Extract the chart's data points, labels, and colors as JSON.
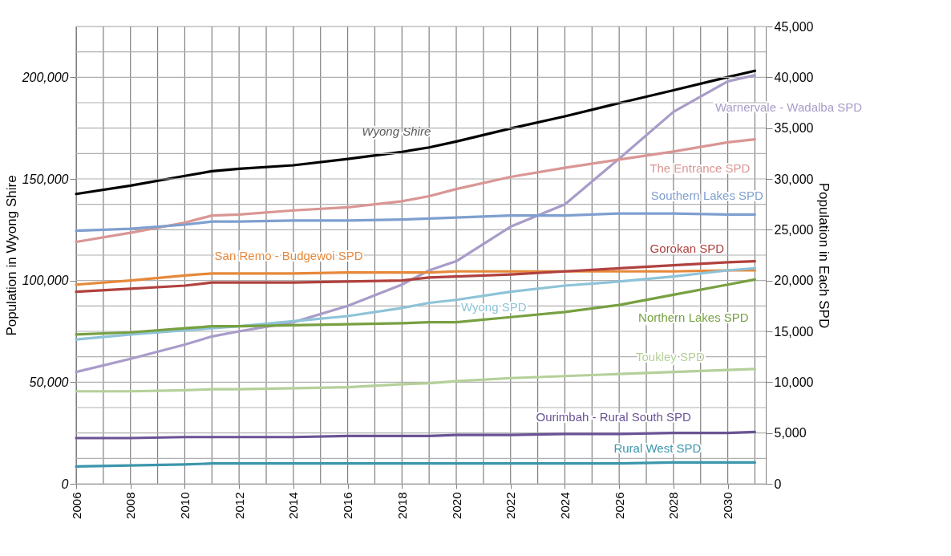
{
  "chart_data": {
    "type": "line",
    "xlabel": null,
    "ylabel": "Population in Wyong Shire",
    "y2label": "Population in Each SPD",
    "x": [
      2006,
      2008,
      2010,
      2011,
      2012,
      2014,
      2016,
      2018,
      2019,
      2020,
      2022,
      2024,
      2026,
      2028,
      2030,
      2031
    ],
    "xlim": [
      2006,
      2031.4
    ],
    "xticks": [
      2006,
      {
        "value": 2007,
        "label": null
      },
      2008,
      {
        "value": 2009,
        "label": null
      },
      2010,
      {
        "value": 2011,
        "label": null
      },
      2012,
      {
        "value": 2013,
        "label": null
      },
      2014,
      {
        "value": 2015,
        "label": null
      },
      2016,
      {
        "value": 2017,
        "label": null
      },
      2018,
      {
        "value": 2019,
        "label": null
      },
      2020,
      {
        "value": 2021,
        "label": null
      },
      2022,
      {
        "value": 2023,
        "label": null
      },
      2024,
      {
        "value": 2025,
        "label": null
      },
      2026,
      {
        "value": 2027,
        "label": null
      },
      2028,
      {
        "value": 2029,
        "label": null
      },
      2030,
      {
        "value": 2031,
        "label": null
      }
    ],
    "ylim": [
      0,
      225000
    ],
    "yticks": [
      0,
      {
        "value": 50000,
        "label": "50,000"
      },
      {
        "value": 100000,
        "label": "100,000"
      },
      {
        "value": 150000,
        "label": "150,000"
      },
      {
        "value": 200000,
        "label": "200,000"
      }
    ],
    "y2lim": [
      0,
      45000
    ],
    "y2ticks": [
      0,
      {
        "value": 2500,
        "label": null
      },
      {
        "value": 5000,
        "label": "5,000"
      },
      {
        "value": 7500,
        "label": null
      },
      {
        "value": 10000,
        "label": "10,000"
      },
      {
        "value": 12500,
        "label": null
      },
      {
        "value": 15000,
        "label": "15,000"
      },
      {
        "value": 17500,
        "label": null
      },
      {
        "value": 20000,
        "label": "20,000"
      },
      {
        "value": 22500,
        "label": null
      },
      {
        "value": 25000,
        "label": "25,000"
      },
      {
        "value": 27500,
        "label": null
      },
      {
        "value": 30000,
        "label": "30,000"
      },
      {
        "value": 32500,
        "label": null
      },
      {
        "value": 35000,
        "label": "35,000"
      },
      {
        "value": 37500,
        "label": null
      },
      {
        "value": 40000,
        "label": "40,000"
      },
      {
        "value": 42500,
        "label": null
      },
      {
        "value": 45000,
        "label": "45,000"
      }
    ],
    "grid": true,
    "series": [
      {
        "name": "Wyong Shire",
        "color": "#000000",
        "values": [
          142600,
          146700,
          151500,
          153800,
          155000,
          156700,
          159800,
          163300,
          165500,
          168400,
          174800,
          180800,
          187300,
          193600,
          200100,
          203200
        ]
      },
      {
        "name": "Warnervale - Wadalba SPD",
        "color": "#a99cc9",
        "axis": "y2",
        "values": [
          11000,
          12300,
          13700,
          14500,
          15000,
          15900,
          17500,
          19600,
          21000,
          21900,
          25300,
          27500,
          32000,
          36600,
          39600,
          40200
        ]
      },
      {
        "name": "The Entrance SPD",
        "color": "#d99694",
        "axis": "y2",
        "values": [
          23800,
          24700,
          25700,
          26400,
          26500,
          26900,
          27200,
          27800,
          28300,
          29000,
          30200,
          31100,
          31900,
          32700,
          33600,
          33900
        ]
      },
      {
        "name": "Southern Lakes SPD",
        "color": "#7f9fcf",
        "axis": "y2",
        "values": [
          24900,
          25100,
          25500,
          25800,
          25800,
          25900,
          25900,
          26000,
          26100,
          26200,
          26400,
          26400,
          26600,
          26600,
          26500,
          26500
        ]
      },
      {
        "name": "San Remo - Budgewoi SPD",
        "color": "#e6883a",
        "axis": "y2",
        "values": [
          19600,
          20000,
          20500,
          20700,
          20700,
          20700,
          20800,
          20800,
          20800,
          20900,
          20900,
          20900,
          20900,
          20900,
          21000,
          21000
        ]
      },
      {
        "name": "Gorokan SPD",
        "color": "#b0413e",
        "axis": "y2",
        "values": [
          18900,
          19200,
          19500,
          19800,
          19800,
          19800,
          19900,
          20000,
          20300,
          20400,
          20600,
          20900,
          21200,
          21500,
          21800,
          21900
        ]
      },
      {
        "name": "Wyong SPD",
        "color": "#8ec3d8",
        "axis": "y2",
        "values": [
          14200,
          14700,
          15100,
          15300,
          15500,
          16000,
          16500,
          17300,
          17800,
          18100,
          18900,
          19500,
          19900,
          20400,
          21000,
          21200
        ]
      },
      {
        "name": "Northern Lakes SPD",
        "color": "#77a041",
        "axis": "y2",
        "values": [
          14700,
          14900,
          15300,
          15500,
          15500,
          15600,
          15700,
          15800,
          15900,
          15900,
          16400,
          16900,
          17600,
          18600,
          19600,
          20100
        ]
      },
      {
        "name": "Toukley SPD",
        "color": "#b5d09a",
        "axis": "y2",
        "values": [
          9100,
          9100,
          9200,
          9300,
          9300,
          9400,
          9500,
          9800,
          9900,
          10100,
          10400,
          10600,
          10800,
          11000,
          11200,
          11300
        ]
      },
      {
        "name": "Ourimbah - Rural South SPD",
        "color": "#6a5395",
        "axis": "y2",
        "values": [
          4500,
          4500,
          4600,
          4600,
          4600,
          4600,
          4700,
          4700,
          4700,
          4800,
          4800,
          4900,
          4900,
          5000,
          5000,
          5100
        ]
      },
      {
        "name": "Rural West SPD",
        "color": "#3c96ac",
        "axis": "y2",
        "values": [
          1700,
          1800,
          1900,
          2000,
          2000,
          2000,
          2000,
          2000,
          2000,
          2000,
          2000,
          2000,
          2000,
          2100,
          2100,
          2100
        ]
      }
    ]
  }
}
